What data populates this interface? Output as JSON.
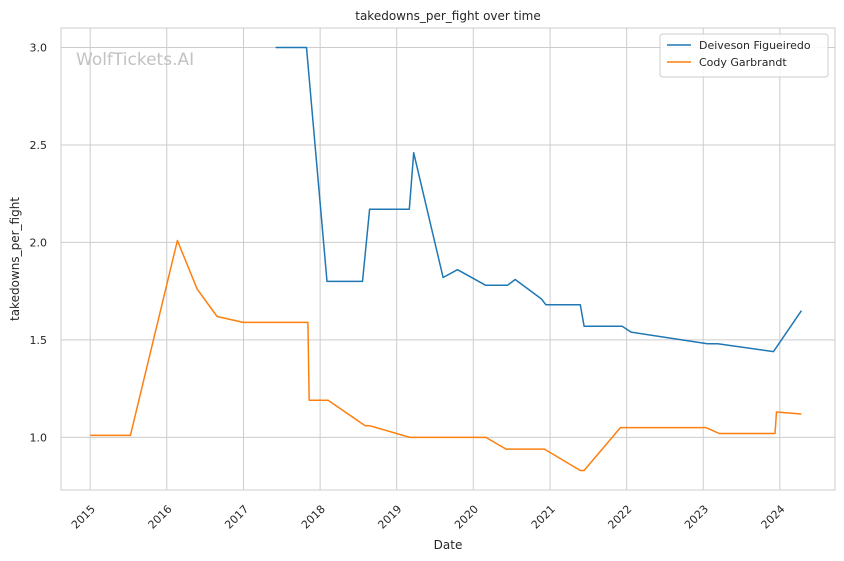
{
  "chart_data": {
    "type": "line",
    "title": "takedowns_per_fight over time",
    "xlabel": "Date",
    "ylabel": "takedowns_per_fight",
    "watermark": "WolfTickets.AI",
    "xlim": [
      "2014-08-15",
      "2024-09-20"
    ],
    "ylim": [
      0.73,
      3.1
    ],
    "x_ticks": [
      "2015",
      "2016",
      "2017",
      "2018",
      "2019",
      "2020",
      "2021",
      "2022",
      "2023",
      "2024"
    ],
    "y_ticks": [
      "1.0",
      "1.5",
      "2.0",
      "2.5",
      "3.0"
    ],
    "grid": true,
    "legend_position": "top-right",
    "series": [
      {
        "name": "Deiveson Figueiredo",
        "color": "#1f77b4",
        "points": [
          [
            "2017-06-03",
            3.0
          ],
          [
            "2017-10-28",
            3.0
          ],
          [
            "2018-02-03",
            1.8
          ],
          [
            "2018-07-22",
            1.8
          ],
          [
            "2018-08-25",
            2.17
          ],
          [
            "2019-03-02",
            2.17
          ],
          [
            "2019-03-23",
            2.46
          ],
          [
            "2019-08-10",
            1.82
          ],
          [
            "2019-10-18",
            1.86
          ],
          [
            "2020-02-29",
            1.78
          ],
          [
            "2020-06-12",
            1.78
          ],
          [
            "2020-07-19",
            1.81
          ],
          [
            "2020-11-21",
            1.71
          ],
          [
            "2020-12-12",
            1.68
          ],
          [
            "2021-05-25",
            1.68
          ],
          [
            "2021-06-12",
            1.57
          ],
          [
            "2021-12-11",
            1.57
          ],
          [
            "2022-01-22",
            1.54
          ],
          [
            "2023-01-21",
            1.48
          ],
          [
            "2023-03-11",
            1.48
          ],
          [
            "2023-12-02",
            1.44
          ],
          [
            "2024-04-13",
            1.65
          ]
        ]
      },
      {
        "name": "Cody Garbrandt",
        "color": "#ff7f0e",
        "points": [
          [
            "2015-01-01",
            1.01
          ],
          [
            "2015-07-12",
            1.01
          ],
          [
            "2016-02-21",
            2.01
          ],
          [
            "2016-05-25",
            1.76
          ],
          [
            "2016-08-28",
            1.62
          ],
          [
            "2016-12-30",
            1.59
          ],
          [
            "2017-11-04",
            1.59
          ],
          [
            "2017-11-10",
            1.19
          ],
          [
            "2018-02-08",
            1.19
          ],
          [
            "2018-08-04",
            1.06
          ],
          [
            "2018-08-25",
            1.06
          ],
          [
            "2019-03-05",
            1.0
          ],
          [
            "2020-03-01",
            1.0
          ],
          [
            "2020-06-05",
            0.94
          ],
          [
            "2020-12-05",
            0.94
          ],
          [
            "2021-05-25",
            0.83
          ],
          [
            "2021-06-12",
            0.83
          ],
          [
            "2021-12-02",
            1.05
          ],
          [
            "2023-01-14",
            1.05
          ],
          [
            "2023-03-18",
            1.02
          ],
          [
            "2023-12-09",
            1.02
          ],
          [
            "2023-12-16",
            1.13
          ],
          [
            "2024-04-13",
            1.12
          ]
        ]
      }
    ]
  }
}
